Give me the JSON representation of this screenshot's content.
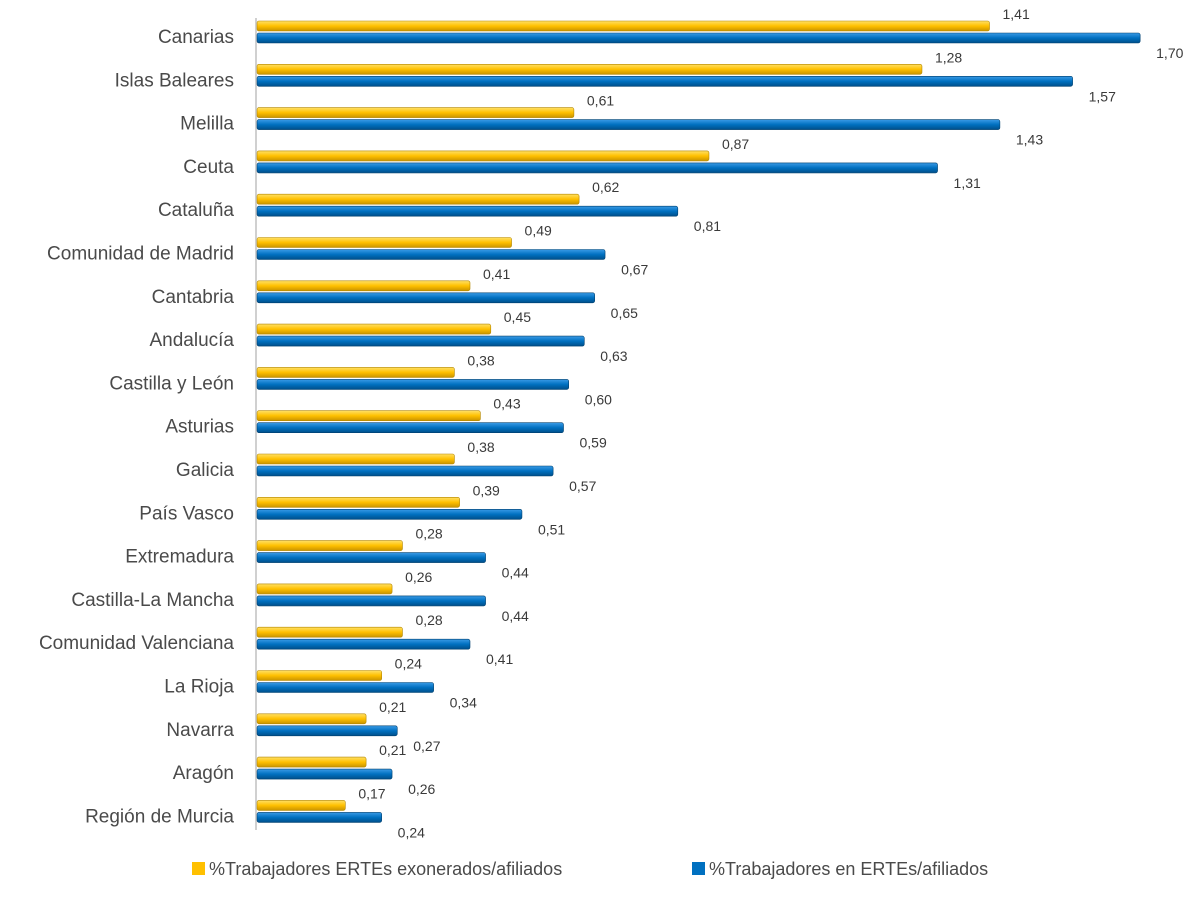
{
  "chart_data": {
    "type": "bar",
    "orientation": "horizontal",
    "title": "",
    "xlabel": "",
    "ylabel": "",
    "xlim": [
      0,
      1.8
    ],
    "grid": false,
    "legend_position": "bottom",
    "categories": [
      "Canarias",
      "Islas Baleares",
      "Melilla",
      "Ceuta",
      "Cataluña",
      "Comunidad de Madrid",
      "Cantabria",
      "Andalucía",
      "Castilla y León",
      "Asturias",
      "Galicia",
      "País Vasco",
      "Extremadura",
      "Castilla-La Mancha",
      "Comunidad Valenciana",
      "La Rioja",
      "Navarra",
      "Aragón",
      "Región de Murcia"
    ],
    "series": [
      {
        "name": "%Trabajadores ERTEs exonerados/afiliados",
        "color": "#FFC000",
        "values": [
          1.41,
          1.28,
          0.61,
          0.87,
          0.62,
          0.49,
          0.41,
          0.45,
          0.38,
          0.43,
          0.38,
          0.39,
          0.28,
          0.26,
          0.28,
          0.24,
          0.21,
          0.21,
          0.17
        ],
        "labels": [
          "1,41",
          "1,28",
          "0,61",
          "0,87",
          "0,62",
          "0,49",
          "0,41",
          "0,45",
          "0,38",
          "0,43",
          "0,38",
          "0,39",
          "0,28",
          "0,26",
          "0,28",
          "0,24",
          "0,21",
          "0,21",
          "0,17"
        ]
      },
      {
        "name": "%Trabajadores en ERTEs/afiliados",
        "color": "#0070C0",
        "values": [
          1.7,
          1.57,
          1.43,
          1.31,
          0.81,
          0.67,
          0.65,
          0.63,
          0.6,
          0.59,
          0.57,
          0.51,
          0.44,
          0.44,
          0.41,
          0.34,
          0.27,
          0.26,
          0.24
        ],
        "labels": [
          "1,70",
          "1,57",
          "1,43",
          "1,31",
          "0,81",
          "0,67",
          "0,65",
          "0,63",
          "0,60",
          "0,59",
          "0,57",
          "0,51",
          "0,44",
          "0,44",
          "0,41",
          "0,34",
          "0,27",
          "0,26",
          "0,24"
        ]
      }
    ]
  }
}
